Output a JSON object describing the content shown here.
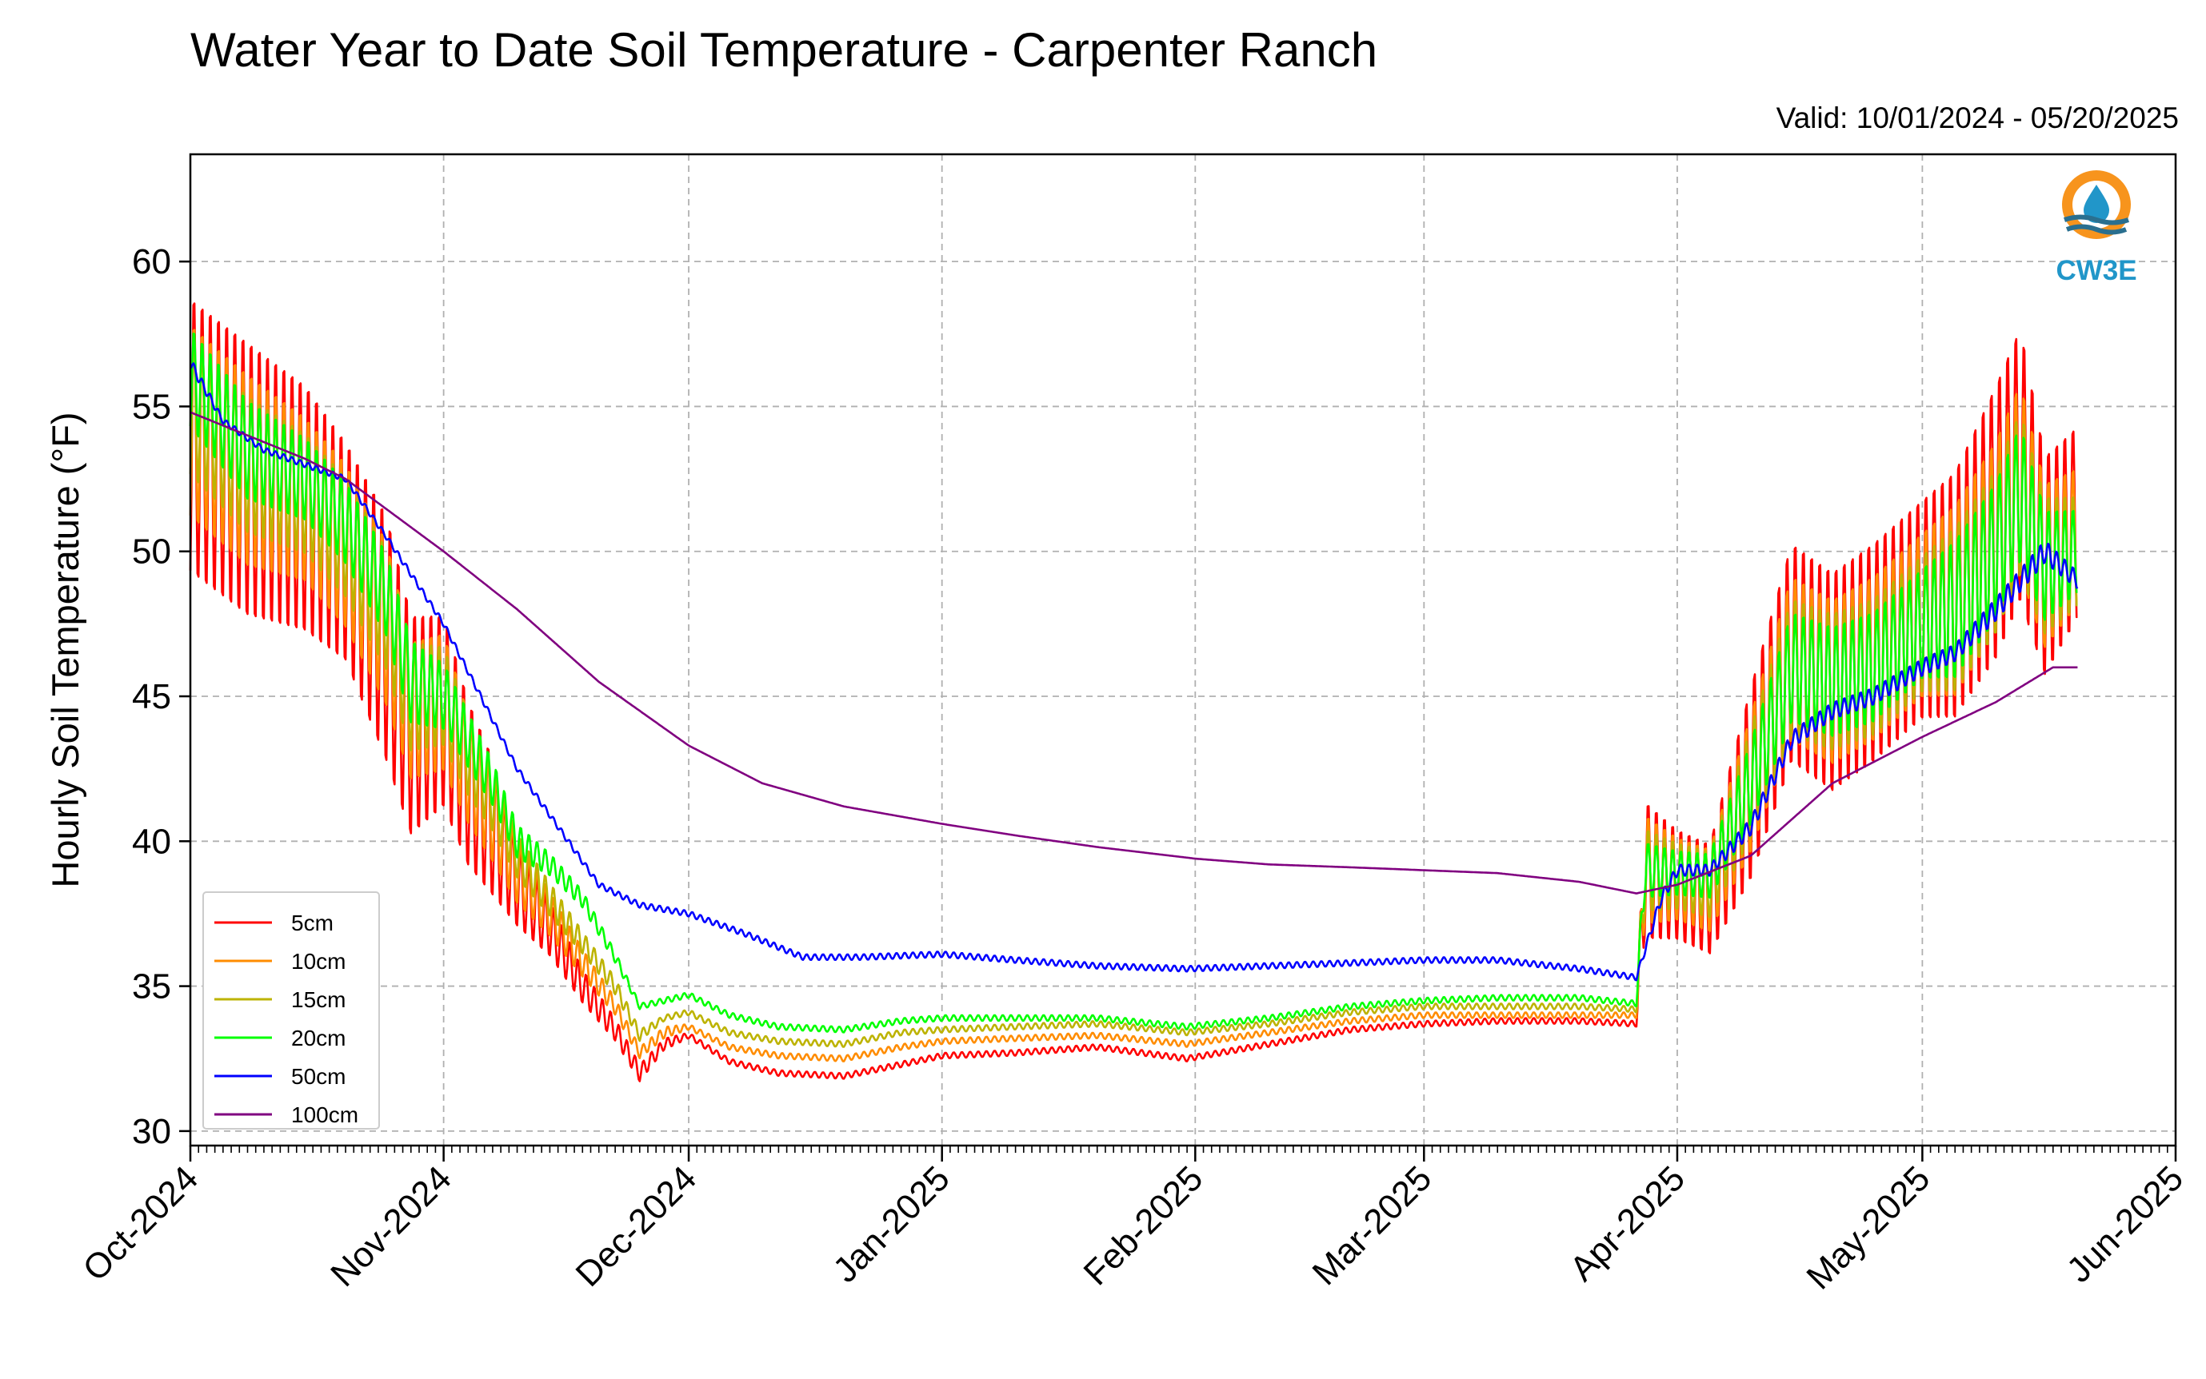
{
  "chart_data": {
    "type": "line",
    "title": "Water Year to Date Soil Temperature - Carpenter Ranch",
    "subtitle": "Valid: 10/01/2024 - 05/20/2025",
    "xlabel": "",
    "ylabel": "Hourly Soil Temperature (°F)",
    "ylim": [
      29.5,
      63.7
    ],
    "xlim": [
      "2024-10-01",
      "2025-06-01"
    ],
    "yticks": [
      30,
      35,
      40,
      45,
      50,
      55,
      60
    ],
    "ytick_labels": [
      "30",
      "35",
      "40",
      "45",
      "50",
      "55",
      "60"
    ],
    "xticks": [
      "2024-10-01",
      "2024-11-01",
      "2024-12-01",
      "2025-01-01",
      "2025-02-01",
      "2025-03-01",
      "2025-04-01",
      "2025-05-01",
      "2025-06-01"
    ],
    "xtick_labels": [
      "Oct-2024",
      "Nov-2024",
      "Dec-2024",
      "Jan-2025",
      "Feb-2025",
      "Mar-2025",
      "Apr-2025",
      "May-2025",
      "Jun-2025"
    ],
    "grid": true,
    "legend_position": "lower-left",
    "logo": {
      "text": "CW3E",
      "color_ring": "#f7941d",
      "color_drop": "#2196c9"
    },
    "series": [
      {
        "name": "5cm",
        "color": "#ff0000",
        "x": [
          "2024-10-01",
          "2024-10-08",
          "2024-10-15",
          "2024-10-20",
          "2024-10-25",
          "2024-10-28",
          "2024-11-01",
          "2024-11-04",
          "2024-11-07",
          "2024-11-10",
          "2024-11-14",
          "2024-11-18",
          "2024-11-22",
          "2024-11-25",
          "2024-11-28",
          "2024-12-01",
          "2024-12-06",
          "2024-12-12",
          "2024-12-20",
          "2024-12-27",
          "2025-01-01",
          "2025-01-10",
          "2025-01-20",
          "2025-01-31",
          "2025-02-10",
          "2025-02-20",
          "2025-03-01",
          "2025-03-10",
          "2025-03-20",
          "2025-03-27",
          "2025-03-28",
          "2025-04-01",
          "2025-04-05",
          "2025-04-10",
          "2025-04-15",
          "2025-04-20",
          "2025-04-25",
          "2025-05-01",
          "2025-05-05",
          "2025-05-10",
          "2025-05-13",
          "2025-05-16",
          "2025-05-20"
        ],
        "y": [
          54.0,
          52.5,
          51.5,
          50.0,
          47.0,
          44.0,
          44.5,
          42.0,
          40.5,
          38.5,
          37.0,
          35.0,
          33.5,
          32.0,
          33.0,
          33.3,
          32.4,
          32.0,
          31.9,
          32.3,
          32.6,
          32.7,
          32.9,
          32.5,
          33.0,
          33.5,
          33.7,
          33.8,
          33.8,
          33.7,
          39.0,
          38.5,
          38.0,
          42.0,
          46.5,
          45.5,
          46.5,
          48.0,
          48.5,
          51.0,
          53.0,
          49.5,
          51.0
        ],
        "amp": [
          5.0,
          5.0,
          4.5,
          4.0,
          4.5,
          4.0,
          3.5,
          3.0,
          2.5,
          1.5,
          1.0,
          0.6,
          0.4,
          0.3,
          0.2,
          0.1,
          0.1,
          0.1,
          0.1,
          0.1,
          0.1,
          0.1,
          0.1,
          0.1,
          0.1,
          0.1,
          0.1,
          0.1,
          0.1,
          0.1,
          2.5,
          2.0,
          2.0,
          3.5,
          4.0,
          4.0,
          4.0,
          4.0,
          4.5,
          5.0,
          5.0,
          4.0,
          3.5
        ]
      },
      {
        "name": "10cm",
        "color": "#ff8c00",
        "x": [
          "2024-10-01",
          "2024-10-08",
          "2024-10-15",
          "2024-10-20",
          "2024-10-25",
          "2024-10-28",
          "2024-11-01",
          "2024-11-04",
          "2024-11-07",
          "2024-11-10",
          "2024-11-14",
          "2024-11-18",
          "2024-11-22",
          "2024-11-25",
          "2024-11-28",
          "2024-12-01",
          "2024-12-06",
          "2024-12-12",
          "2024-12-20",
          "2024-12-27",
          "2025-01-01",
          "2025-01-10",
          "2025-01-20",
          "2025-01-31",
          "2025-02-10",
          "2025-02-20",
          "2025-03-01",
          "2025-03-10",
          "2025-03-20",
          "2025-03-27",
          "2025-03-28",
          "2025-04-01",
          "2025-04-05",
          "2025-04-10",
          "2025-04-15",
          "2025-04-20",
          "2025-04-25",
          "2025-05-01",
          "2025-05-05",
          "2025-05-10",
          "2025-05-13",
          "2025-05-16",
          "2025-05-20"
        ],
        "y": [
          54.5,
          52.8,
          51.8,
          50.2,
          47.5,
          44.5,
          44.8,
          42.5,
          41.0,
          39.0,
          37.5,
          35.8,
          34.3,
          32.7,
          33.4,
          33.6,
          32.9,
          32.6,
          32.5,
          32.9,
          33.1,
          33.2,
          33.3,
          33.0,
          33.4,
          33.8,
          34.0,
          34.0,
          34.0,
          34.0,
          39.0,
          38.7,
          38.3,
          42.0,
          46.3,
          45.5,
          46.3,
          47.8,
          48.3,
          50.5,
          52.5,
          49.5,
          50.5
        ],
        "amp": [
          3.5,
          3.5,
          3.0,
          3.0,
          3.0,
          2.5,
          2.5,
          2.0,
          1.8,
          1.2,
          0.8,
          0.5,
          0.3,
          0.2,
          0.2,
          0.1,
          0.1,
          0.1,
          0.1,
          0.1,
          0.1,
          0.1,
          0.1,
          0.1,
          0.1,
          0.1,
          0.1,
          0.1,
          0.1,
          0.1,
          2.0,
          1.5,
          1.5,
          2.5,
          3.0,
          3.0,
          3.0,
          3.0,
          3.5,
          3.5,
          3.5,
          3.0,
          2.5
        ]
      },
      {
        "name": "15cm",
        "color": "#bdb300",
        "x": [
          "2024-10-01",
          "2024-10-08",
          "2024-10-15",
          "2024-10-20",
          "2024-10-25",
          "2024-10-28",
          "2024-11-01",
          "2024-11-04",
          "2024-11-07",
          "2024-11-10",
          "2024-11-14",
          "2024-11-18",
          "2024-11-22",
          "2024-11-25",
          "2024-11-28",
          "2024-12-01",
          "2024-12-06",
          "2024-12-12",
          "2024-12-20",
          "2024-12-27",
          "2025-01-01",
          "2025-01-10",
          "2025-01-20",
          "2025-01-31",
          "2025-02-10",
          "2025-02-20",
          "2025-03-01",
          "2025-03-10",
          "2025-03-20",
          "2025-03-27",
          "2025-03-28",
          "2025-04-01",
          "2025-04-05",
          "2025-04-10",
          "2025-04-15",
          "2025-04-20",
          "2025-04-25",
          "2025-05-01",
          "2025-05-05",
          "2025-05-10",
          "2025-05-13",
          "2025-05-16",
          "2025-05-20"
        ],
        "y": [
          55.0,
          53.0,
          52.0,
          50.5,
          48.0,
          45.0,
          45.0,
          43.0,
          41.5,
          39.5,
          38.0,
          36.5,
          35.0,
          33.3,
          33.9,
          34.1,
          33.4,
          33.1,
          33.0,
          33.4,
          33.5,
          33.6,
          33.7,
          33.4,
          33.7,
          34.1,
          34.3,
          34.3,
          34.3,
          34.2,
          39.0,
          38.8,
          38.5,
          42.0,
          46.0,
          45.5,
          46.0,
          47.5,
          48.0,
          50.0,
          52.0,
          49.5,
          50.0
        ],
        "amp": [
          2.5,
          2.5,
          2.2,
          2.2,
          2.2,
          2.0,
          1.8,
          1.5,
          1.2,
          0.8,
          0.6,
          0.4,
          0.3,
          0.2,
          0.1,
          0.1,
          0.1,
          0.1,
          0.1,
          0.1,
          0.1,
          0.1,
          0.1,
          0.1,
          0.1,
          0.1,
          0.1,
          0.1,
          0.1,
          0.1,
          1.5,
          1.2,
          1.2,
          2.0,
          2.5,
          2.5,
          2.5,
          2.5,
          3.0,
          3.0,
          3.0,
          2.5,
          2.0
        ]
      },
      {
        "name": "20cm",
        "color": "#00ff00",
        "x": [
          "2024-10-01",
          "2024-10-08",
          "2024-10-15",
          "2024-10-20",
          "2024-10-25",
          "2024-10-28",
          "2024-11-01",
          "2024-11-04",
          "2024-11-07",
          "2024-11-10",
          "2024-11-14",
          "2024-11-18",
          "2024-11-22",
          "2024-11-25",
          "2024-11-28",
          "2024-12-01",
          "2024-12-06",
          "2024-12-12",
          "2024-12-20",
          "2024-12-27",
          "2025-01-01",
          "2025-01-10",
          "2025-01-20",
          "2025-01-31",
          "2025-02-10",
          "2025-02-20",
          "2025-03-01",
          "2025-03-10",
          "2025-03-20",
          "2025-03-27",
          "2025-03-28",
          "2025-04-01",
          "2025-04-05",
          "2025-04-10",
          "2025-04-15",
          "2025-04-20",
          "2025-04-25",
          "2025-05-01",
          "2025-05-05",
          "2025-05-10",
          "2025-05-13",
          "2025-05-16",
          "2025-05-20"
        ],
        "y": [
          56.0,
          53.5,
          52.5,
          51.0,
          48.5,
          45.5,
          45.0,
          43.5,
          42.0,
          40.0,
          39.2,
          38.0,
          36.0,
          34.3,
          34.5,
          34.7,
          34.0,
          33.6,
          33.5,
          33.8,
          33.9,
          33.9,
          33.9,
          33.6,
          33.9,
          34.3,
          34.5,
          34.6,
          34.6,
          34.4,
          39.0,
          38.9,
          38.8,
          42.0,
          46.0,
          45.5,
          46.0,
          47.5,
          48.0,
          50.0,
          52.0,
          49.5,
          50.0
        ],
        "amp": [
          1.8,
          1.8,
          1.5,
          1.5,
          1.5,
          1.5,
          1.2,
          1.0,
          0.8,
          0.6,
          0.4,
          0.3,
          0.2,
          0.1,
          0.1,
          0.1,
          0.1,
          0.1,
          0.1,
          0.1,
          0.1,
          0.1,
          0.1,
          0.1,
          0.1,
          0.1,
          0.1,
          0.1,
          0.1,
          0.1,
          1.0,
          0.8,
          0.8,
          1.5,
          2.0,
          2.0,
          2.0,
          2.0,
          2.5,
          2.5,
          2.5,
          2.0,
          1.5
        ]
      },
      {
        "name": "50cm",
        "color": "#0000ff",
        "x": [
          "2024-10-01",
          "2024-10-05",
          "2024-10-10",
          "2024-10-15",
          "2024-10-20",
          "2024-10-25",
          "2024-11-01",
          "2024-11-05",
          "2024-11-10",
          "2024-11-15",
          "2024-11-20",
          "2024-11-25",
          "2024-12-01",
          "2024-12-08",
          "2024-12-15",
          "2024-12-22",
          "2025-01-01",
          "2025-01-10",
          "2025-01-20",
          "2025-01-31",
          "2025-02-10",
          "2025-02-20",
          "2025-03-01",
          "2025-03-10",
          "2025-03-20",
          "2025-03-27",
          "2025-03-30",
          "2025-04-01",
          "2025-04-05",
          "2025-04-10",
          "2025-04-15",
          "2025-04-20",
          "2025-04-25",
          "2025-05-01",
          "2025-05-05",
          "2025-05-10",
          "2025-05-13",
          "2025-05-16",
          "2025-05-20"
        ],
        "y": [
          56.5,
          54.5,
          53.5,
          53.0,
          52.5,
          50.5,
          47.5,
          45.3,
          42.5,
          40.5,
          38.5,
          37.8,
          37.5,
          36.8,
          36.0,
          36.0,
          36.1,
          35.9,
          35.7,
          35.6,
          35.7,
          35.8,
          35.9,
          35.9,
          35.6,
          35.3,
          38.0,
          39.0,
          39.0,
          40.5,
          43.5,
          44.5,
          45.0,
          46.0,
          46.5,
          48.0,
          49.0,
          50.0,
          49.0
        ],
        "amp": [
          0.2,
          0.1,
          0.1,
          0.1,
          0.1,
          0.1,
          0.1,
          0.1,
          0.1,
          0.1,
          0.1,
          0.1,
          0.1,
          0.1,
          0.1,
          0.1,
          0.1,
          0.1,
          0.1,
          0.1,
          0.1,
          0.1,
          0.1,
          0.1,
          0.1,
          0.1,
          0.2,
          0.2,
          0.2,
          0.3,
          0.3,
          0.3,
          0.3,
          0.3,
          0.3,
          0.4,
          0.4,
          0.4,
          0.3
        ]
      },
      {
        "name": "100cm",
        "color": "#800080",
        "x": [
          "2024-10-01",
          "2024-10-08",
          "2024-10-15",
          "2024-10-20",
          "2024-11-01",
          "2024-11-10",
          "2024-11-20",
          "2024-12-01",
          "2024-12-10",
          "2024-12-20",
          "2025-01-01",
          "2025-01-10",
          "2025-01-20",
          "2025-02-01",
          "2025-02-10",
          "2025-02-20",
          "2025-03-01",
          "2025-03-10",
          "2025-03-20",
          "2025-03-27",
          "2025-04-01",
          "2025-04-10",
          "2025-04-20",
          "2025-05-01",
          "2025-05-10",
          "2025-05-17",
          "2025-05-20"
        ],
        "y": [
          54.8,
          54.0,
          53.2,
          52.5,
          50.0,
          48.0,
          45.5,
          43.3,
          42.0,
          41.2,
          40.6,
          40.2,
          39.8,
          39.4,
          39.2,
          39.1,
          39.0,
          38.9,
          38.6,
          38.2,
          38.5,
          39.5,
          42.0,
          43.6,
          44.8,
          46.0,
          46.0
        ],
        "amp": [
          0,
          0,
          0,
          0,
          0,
          0,
          0,
          0,
          0,
          0,
          0,
          0,
          0,
          0,
          0,
          0,
          0,
          0,
          0,
          0,
          0,
          0,
          0,
          0,
          0,
          0,
          0
        ]
      }
    ]
  }
}
